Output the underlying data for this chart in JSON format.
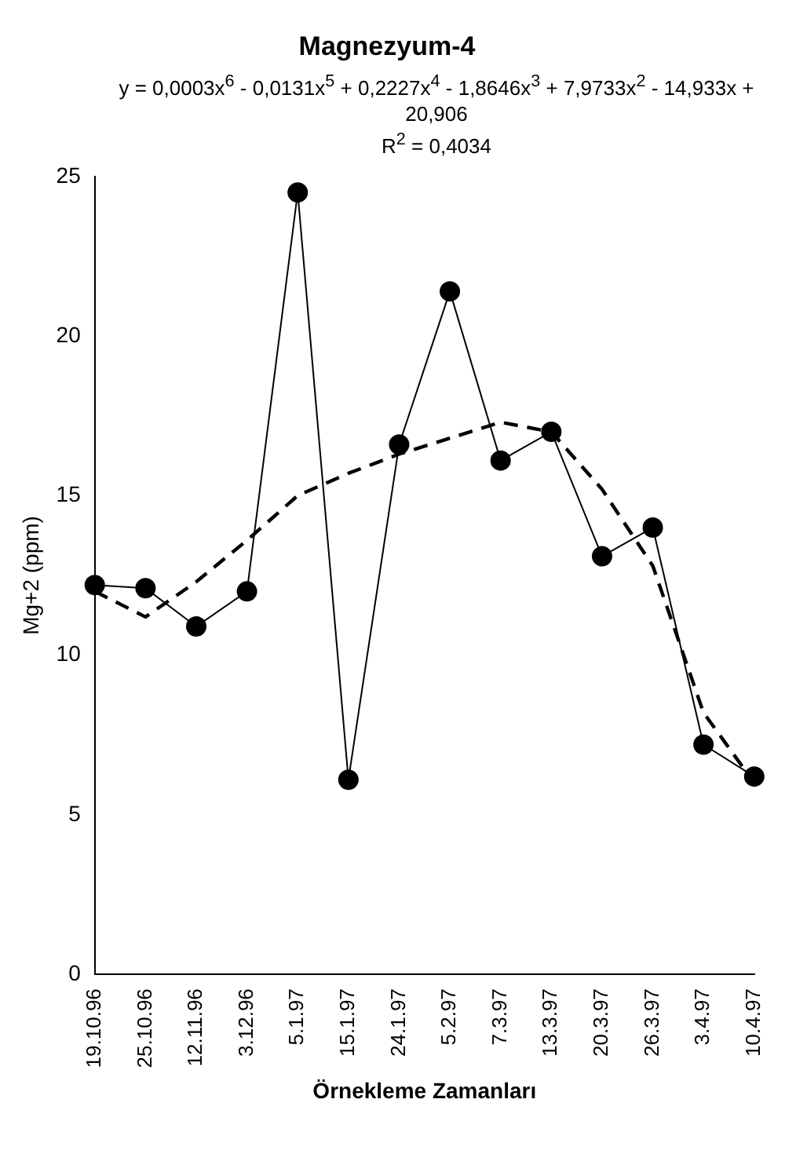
{
  "chart_data": {
    "type": "line",
    "title": "Magnezyum-4",
    "xlabel": "Örnekleme Zamanları",
    "ylabel": "Mg+2 (ppm)",
    "categories": [
      "19.10.96",
      "25.10.96",
      "12.11.96",
      "3.12.96",
      "5.1.97",
      "15.1.97",
      "24.1.97",
      "5.2.97",
      "7.3.97",
      "13.3.97",
      "20.3.97",
      "26.3.97",
      "3.4.97",
      "10.4.97"
    ],
    "series": [
      {
        "color": "#000000",
        "marker": "circle",
        "line_style": "solid",
        "values": [
          12.2,
          12.1,
          10.9,
          12.0,
          24.5,
          6.1,
          16.6,
          21.4,
          16.1,
          17.0,
          13.1,
          14.0,
          7.2,
          6.2
        ]
      },
      {
        "type": "line",
        "color": "#000000",
        "marker": "none",
        "line_style": "dashed",
        "values": [
          12.0,
          11.2,
          12.3,
          13.6,
          15.0,
          15.7,
          16.3,
          16.8,
          17.3,
          17.0,
          15.2,
          12.8,
          8.2,
          6.0
        ]
      }
    ],
    "ylim": [
      0,
      25
    ],
    "yticks": [
      0,
      5,
      10,
      15,
      20,
      25
    ],
    "grid": false,
    "legend": false,
    "annotations": [
      "y = 0,0003x$^{6}$ - 0,0131x$^{5}$ + 0,2227x$^{4}$ - 1,8646x$^{3}$ + 7,9733x$^{2}$ - 14,933x + 20,906",
      "R$^{2}$ = 0,4034"
    ]
  }
}
